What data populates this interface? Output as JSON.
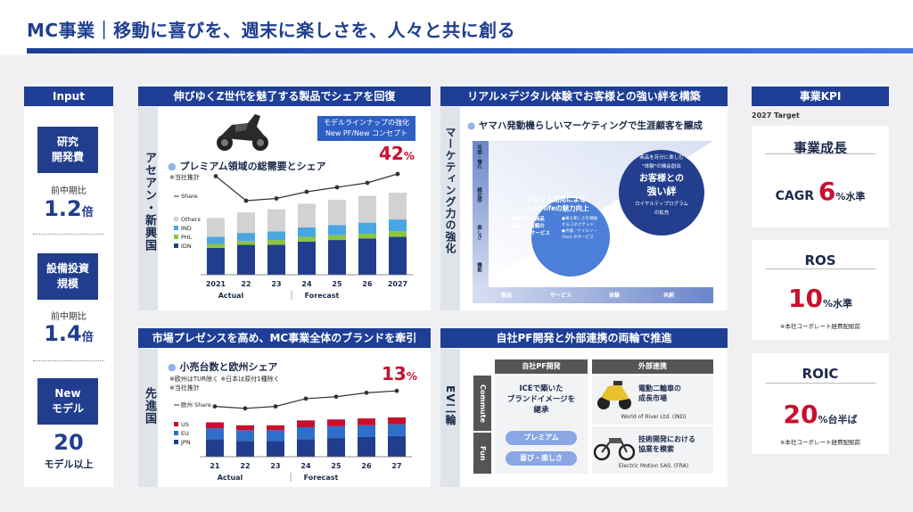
{
  "header": {
    "title": "MC事業｜移動に喜びを、週末に楽しさを、人々と共に創る"
  },
  "input": {
    "title": "Input",
    "items": [
      {
        "label_1": "研究",
        "label_2": "開発費",
        "sub": "前中期比",
        "value": "1.2",
        "unit": "倍"
      },
      {
        "label_1": "設備投資",
        "label_2": "規模",
        "sub": "前中期比",
        "value": "1.4",
        "unit": "倍"
      },
      {
        "label_1": "New",
        "label_2": "モデル",
        "sub": "",
        "value": "20",
        "unit": "モデル以上"
      }
    ]
  },
  "asean": {
    "bar_title": "伸びゆくZ世代を魅了する製品でシェアを回復",
    "side_label": "アセアン・新興国",
    "callout_1": "モデルラインナップの強化",
    "callout_2": "New PF/New コンセプト",
    "chart_title": "プレミアム領域の総需要とシェア",
    "note": "※当社推計",
    "end_value": "42",
    "end_unit": "%"
  },
  "developed": {
    "bar_title": "市場プレゼンスを高め、MC事業全体のブランドを牽引",
    "side_label": "先進国",
    "chart_title": "小売台数と欧州シェア",
    "note_1": "※欧州はTUR除く ※日本は原付1種除く",
    "note_2": "※当社推計",
    "end_value": "13",
    "end_unit": "%"
  },
  "marketing": {
    "bar_title": "リアル×デジタル体験でお客様との強い絆を構築",
    "side_label": "マーケティング力の強化",
    "subtitle": "ヤマハ発動機らしいマーケティングで生涯顧客を醸成",
    "y_labels": [
      "共感・憧れ",
      "親近感",
      "楽しさ",
      "機能"
    ],
    "x_labels": [
      "製品",
      "サービス",
      "体験",
      "共創"
    ],
    "small_circle": {
      "title_1": "デジタル活用による",
      "title_2": "バイクlifeの魅力向上",
      "items": [
        "●魅力的な商品",
        "●安心／信頼の",
        "アフターサービス"
      ],
      "right_items": [
        "●乗る楽しさを増幅",
        "するコネクテッド",
        "●点検／ナイルソー",
        "/1to1 のサービス"
      ]
    },
    "big_circle": {
      "top_1": "商品を存分に楽しむ",
      "top_2": "\"体験\"の機会創出",
      "title_1": "お客様との",
      "title_2": "強い絆",
      "bottom_1": "ロイヤルティプログラム",
      "bottom_2": "の拡充"
    }
  },
  "ev": {
    "bar_title": "自社PF開発と外部連携の両輪で推進",
    "side_label": "EV二輪",
    "tab_commute": "Commute",
    "tab_fun": "Fun",
    "col_1": "自社PF開発",
    "col_2": "外部連携",
    "ice_1": "ICEで築いた",
    "ice_2": "ブランドイメージを",
    "ice_3": "継承",
    "pill_1": "プレミアム",
    "pill_2": "喜び・楽しさ",
    "partner_1_1": "電動二輪車の",
    "partner_1_2": "成長市場",
    "partner_1_caption": "World of River Ltd. (IND)",
    "partner_2_1": "技術開発における",
    "partner_2_2": "協業を模索",
    "partner_2_caption": "Electric Motion SAS. (FRA)"
  },
  "kpi": {
    "title": "事業KPI",
    "target": "2027 Target",
    "cards": [
      {
        "head": "事業成長",
        "prefix": "CAGR ",
        "value": "6",
        "unit": "%水準",
        "note": ""
      },
      {
        "head": "ROS",
        "prefix": "",
        "value": "10",
        "unit": "%水準",
        "note": "※本社コーポレート経費配賦前"
      },
      {
        "head": "ROIC",
        "prefix": "",
        "value": "20",
        "unit": "%台半ば",
        "note": "※本社コーポレート経費配賦前"
      }
    ]
  },
  "colors": {
    "navy": "#213e8e",
    "mid_blue": "#2f6fcc",
    "light_blue": "#4aa6e0",
    "green": "#8cc63f",
    "gray": "#d2d2d2",
    "red": "#c8102e"
  },
  "chart_data": [
    {
      "type": "bar",
      "stacked": true,
      "categories": [
        "2021",
        "22",
        "23",
        "24",
        "25",
        "26",
        "2027"
      ],
      "x_groups": [
        "Actual",
        "Forecast"
      ],
      "series": [
        {
          "name": "IDN",
          "values": [
            34,
            38,
            38,
            42,
            44,
            46,
            48
          ]
        },
        {
          "name": "PHL",
          "values": [
            5,
            5,
            6,
            6,
            6,
            6,
            7
          ]
        },
        {
          "name": "IND",
          "values": [
            9,
            10,
            11,
            12,
            13,
            14,
            15
          ]
        },
        {
          "name": "Others",
          "values": [
            24,
            26,
            28,
            30,
            32,
            34,
            34
          ]
        }
      ],
      "line": {
        "name": "Share",
        "values": [
          41,
          30,
          31,
          34,
          36,
          38,
          42
        ]
      }
    },
    {
      "type": "bar",
      "stacked": true,
      "categories": [
        "21",
        "22",
        "23",
        "24",
        "25",
        "26",
        "27"
      ],
      "x_groups": [
        "Actual",
        "Forecast"
      ],
      "series": [
        {
          "name": "JPN",
          "values": [
            18,
            16,
            16,
            18,
            19,
            20,
            21
          ]
        },
        {
          "name": "EU",
          "values": [
            11,
            11,
            11,
            12,
            12,
            12,
            12
          ]
        },
        {
          "name": "US",
          "values": [
            6,
            5,
            5,
            7,
            7,
            7,
            7
          ]
        }
      ],
      "line": {
        "name": "欧州 Share",
        "values": [
          9,
          8.5,
          9,
          11,
          11.5,
          12.5,
          13
        ]
      }
    }
  ]
}
